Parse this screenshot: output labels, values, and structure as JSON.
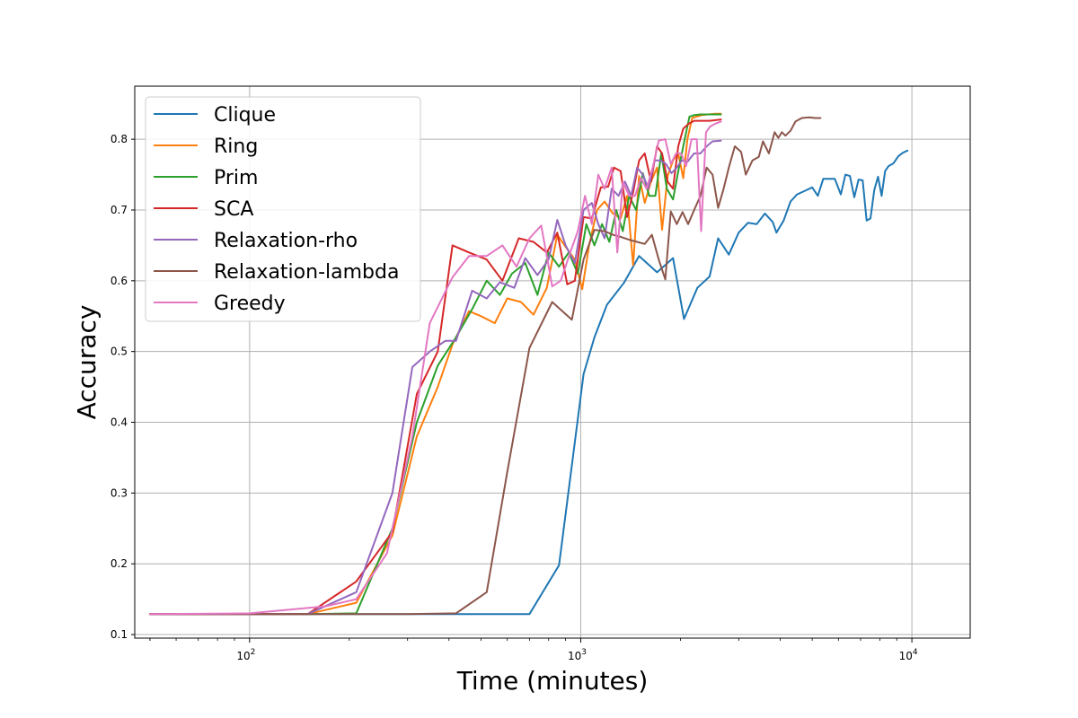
{
  "chart_data": {
    "type": "line",
    "xlabel": "Time (minutes)",
    "ylabel": "Accuracy",
    "xscale": "log",
    "xlim": [
      45,
      15000
    ],
    "ylim": [
      0.095,
      0.875
    ],
    "grid": true,
    "legend_position": "top-left",
    "x_ticks": [
      {
        "value": 100,
        "base": "10",
        "exp": "2"
      },
      {
        "value": 1000,
        "base": "10",
        "exp": "3"
      },
      {
        "value": 10000,
        "base": "10",
        "exp": "4"
      }
    ],
    "y_ticks": [
      {
        "value": 0.1,
        "label": "0.1"
      },
      {
        "value": 0.2,
        "label": "0.2"
      },
      {
        "value": 0.3,
        "label": "0.3"
      },
      {
        "value": 0.4,
        "label": "0.4"
      },
      {
        "value": 0.5,
        "label": "0.5"
      },
      {
        "value": 0.6,
        "label": "0.6"
      },
      {
        "value": 0.7,
        "label": "0.7"
      },
      {
        "value": 0.8,
        "label": "0.8"
      }
    ],
    "series": [
      {
        "name": "Clique",
        "color": "#1f77b4",
        "points": [
          [
            50,
            0.129
          ],
          [
            150,
            0.129
          ],
          [
            300,
            0.129
          ],
          [
            500,
            0.129
          ],
          [
            700,
            0.129
          ],
          [
            860,
            0.198
          ],
          [
            1020,
            0.468
          ],
          [
            1100,
            0.52
          ],
          [
            1200,
            0.566
          ],
          [
            1350,
            0.597
          ],
          [
            1500,
            0.635
          ],
          [
            1700,
            0.612
          ],
          [
            1900,
            0.632
          ],
          [
            2050,
            0.546
          ],
          [
            2250,
            0.59
          ],
          [
            2450,
            0.606
          ],
          [
            2600,
            0.66
          ],
          [
            2800,
            0.637
          ],
          [
            3000,
            0.668
          ],
          [
            3200,
            0.682
          ],
          [
            3400,
            0.68
          ],
          [
            3600,
            0.695
          ],
          [
            3800,
            0.683
          ],
          [
            3900,
            0.668
          ],
          [
            4100,
            0.685
          ],
          [
            4300,
            0.712
          ],
          [
            4500,
            0.722
          ],
          [
            4800,
            0.728
          ],
          [
            5000,
            0.732
          ],
          [
            5200,
            0.72
          ],
          [
            5400,
            0.744
          ],
          [
            5600,
            0.744
          ],
          [
            5850,
            0.744
          ],
          [
            6100,
            0.722
          ],
          [
            6300,
            0.75
          ],
          [
            6500,
            0.748
          ],
          [
            6700,
            0.718
          ],
          [
            6900,
            0.743
          ],
          [
            7100,
            0.742
          ],
          [
            7300,
            0.685
          ],
          [
            7500,
            0.688
          ],
          [
            7700,
            0.728
          ],
          [
            7900,
            0.747
          ],
          [
            8100,
            0.72
          ],
          [
            8300,
            0.755
          ],
          [
            8500,
            0.762
          ],
          [
            8800,
            0.766
          ],
          [
            9100,
            0.776
          ],
          [
            9400,
            0.781
          ],
          [
            9700,
            0.784
          ]
        ]
      },
      {
        "name": "Ring",
        "color": "#ff7f0e",
        "points": [
          [
            50,
            0.129
          ],
          [
            150,
            0.129
          ],
          [
            210,
            0.145
          ],
          [
            270,
            0.24
          ],
          [
            320,
            0.38
          ],
          [
            370,
            0.45
          ],
          [
            410,
            0.51
          ],
          [
            460,
            0.557
          ],
          [
            500,
            0.55
          ],
          [
            550,
            0.54
          ],
          [
            600,
            0.575
          ],
          [
            660,
            0.57
          ],
          [
            720,
            0.552
          ],
          [
            790,
            0.59
          ],
          [
            850,
            0.665
          ],
          [
            900,
            0.648
          ],
          [
            960,
            0.63
          ],
          [
            1010,
            0.588
          ],
          [
            1060,
            0.65
          ],
          [
            1120,
            0.7
          ],
          [
            1180,
            0.712
          ],
          [
            1250,
            0.695
          ],
          [
            1320,
            0.688
          ],
          [
            1380,
            0.72
          ],
          [
            1440,
            0.622
          ],
          [
            1500,
            0.748
          ],
          [
            1560,
            0.71
          ],
          [
            1630,
            0.74
          ],
          [
            1700,
            0.76
          ],
          [
            1760,
            0.672
          ],
          [
            1830,
            0.748
          ],
          [
            1900,
            0.77
          ],
          [
            1970,
            0.78
          ],
          [
            2040,
            0.745
          ],
          [
            2100,
            0.8
          ],
          [
            2170,
            0.83
          ],
          [
            2240,
            0.832
          ],
          [
            2320,
            0.834
          ],
          [
            2420,
            0.835
          ],
          [
            2550,
            0.836
          ],
          [
            2650,
            0.836
          ]
        ]
      },
      {
        "name": "Prim",
        "color": "#2ca02c",
        "points": [
          [
            50,
            0.129
          ],
          [
            150,
            0.129
          ],
          [
            210,
            0.13
          ],
          [
            270,
            0.25
          ],
          [
            320,
            0.4
          ],
          [
            370,
            0.48
          ],
          [
            420,
            0.52
          ],
          [
            470,
            0.56
          ],
          [
            520,
            0.6
          ],
          [
            570,
            0.58
          ],
          [
            620,
            0.61
          ],
          [
            680,
            0.625
          ],
          [
            740,
            0.58
          ],
          [
            800,
            0.64
          ],
          [
            860,
            0.62
          ],
          [
            920,
            0.64
          ],
          [
            980,
            0.61
          ],
          [
            1040,
            0.68
          ],
          [
            1100,
            0.65
          ],
          [
            1160,
            0.68
          ],
          [
            1220,
            0.655
          ],
          [
            1280,
            0.7
          ],
          [
            1340,
            0.67
          ],
          [
            1400,
            0.72
          ],
          [
            1470,
            0.7
          ],
          [
            1540,
            0.752
          ],
          [
            1610,
            0.72
          ],
          [
            1680,
            0.72
          ],
          [
            1750,
            0.78
          ],
          [
            1820,
            0.73
          ],
          [
            1900,
            0.715
          ],
          [
            1980,
            0.76
          ],
          [
            2060,
            0.8
          ],
          [
            2130,
            0.832
          ],
          [
            2200,
            0.834
          ],
          [
            2300,
            0.835
          ],
          [
            2450,
            0.835
          ],
          [
            2650,
            0.835
          ]
        ]
      },
      {
        "name": "SCA",
        "color": "#d62728",
        "points": [
          [
            50,
            0.129
          ],
          [
            150,
            0.129
          ],
          [
            210,
            0.175
          ],
          [
            270,
            0.245
          ],
          [
            320,
            0.44
          ],
          [
            370,
            0.5
          ],
          [
            410,
            0.65
          ],
          [
            460,
            0.64
          ],
          [
            520,
            0.63
          ],
          [
            580,
            0.6
          ],
          [
            650,
            0.66
          ],
          [
            720,
            0.655
          ],
          [
            790,
            0.64
          ],
          [
            850,
            0.668
          ],
          [
            910,
            0.595
          ],
          [
            960,
            0.6
          ],
          [
            1020,
            0.69
          ],
          [
            1080,
            0.688
          ],
          [
            1150,
            0.732
          ],
          [
            1210,
            0.733
          ],
          [
            1260,
            0.76
          ],
          [
            1320,
            0.755
          ],
          [
            1380,
            0.69
          ],
          [
            1440,
            0.725
          ],
          [
            1500,
            0.77
          ],
          [
            1560,
            0.78
          ],
          [
            1630,
            0.74
          ],
          [
            1700,
            0.79
          ],
          [
            1760,
            0.78
          ],
          [
            1830,
            0.74
          ],
          [
            1900,
            0.73
          ],
          [
            1970,
            0.79
          ],
          [
            2040,
            0.815
          ],
          [
            2120,
            0.822
          ],
          [
            2200,
            0.826
          ],
          [
            2300,
            0.826
          ],
          [
            2450,
            0.826
          ],
          [
            2650,
            0.828
          ]
        ]
      },
      {
        "name": "Relaxation-rho",
        "color": "#9467bd",
        "points": [
          [
            50,
            0.129
          ],
          [
            150,
            0.129
          ],
          [
            210,
            0.16
          ],
          [
            270,
            0.3
          ],
          [
            310,
            0.478
          ],
          [
            350,
            0.5
          ],
          [
            390,
            0.515
          ],
          [
            420,
            0.515
          ],
          [
            470,
            0.586
          ],
          [
            520,
            0.575
          ],
          [
            570,
            0.598
          ],
          [
            630,
            0.59
          ],
          [
            680,
            0.632
          ],
          [
            740,
            0.608
          ],
          [
            800,
            0.63
          ],
          [
            850,
            0.686
          ],
          [
            900,
            0.65
          ],
          [
            960,
            0.625
          ],
          [
            1020,
            0.7
          ],
          [
            1080,
            0.71
          ],
          [
            1130,
            0.68
          ],
          [
            1180,
            0.66
          ],
          [
            1240,
            0.73
          ],
          [
            1300,
            0.72
          ],
          [
            1360,
            0.74
          ],
          [
            1420,
            0.72
          ],
          [
            1480,
            0.76
          ],
          [
            1540,
            0.75
          ],
          [
            1600,
            0.73
          ],
          [
            1670,
            0.77
          ],
          [
            1740,
            0.77
          ],
          [
            1810,
            0.765
          ],
          [
            1880,
            0.752
          ],
          [
            1950,
            0.76
          ],
          [
            2020,
            0.77
          ],
          [
            2100,
            0.768
          ],
          [
            2200,
            0.78
          ],
          [
            2300,
            0.78
          ],
          [
            2400,
            0.79
          ],
          [
            2500,
            0.797
          ],
          [
            2650,
            0.798
          ]
        ]
      },
      {
        "name": "Relaxation-lambda",
        "color": "#8c564b",
        "points": [
          [
            50,
            0.129
          ],
          [
            300,
            0.129
          ],
          [
            420,
            0.13
          ],
          [
            520,
            0.16
          ],
          [
            600,
            0.33
          ],
          [
            700,
            0.505
          ],
          [
            820,
            0.57
          ],
          [
            940,
            0.545
          ],
          [
            1020,
            0.63
          ],
          [
            1100,
            0.672
          ],
          [
            1180,
            0.67
          ],
          [
            1250,
            0.665
          ],
          [
            1320,
            0.662
          ],
          [
            1400,
            0.658
          ],
          [
            1480,
            0.655
          ],
          [
            1560,
            0.652
          ],
          [
            1640,
            0.665
          ],
          [
            1720,
            0.63
          ],
          [
            1800,
            0.602
          ],
          [
            1870,
            0.698
          ],
          [
            1950,
            0.68
          ],
          [
            2030,
            0.697
          ],
          [
            2110,
            0.68
          ],
          [
            2200,
            0.7
          ],
          [
            2300,
            0.72
          ],
          [
            2400,
            0.76
          ],
          [
            2500,
            0.75
          ],
          [
            2600,
            0.703
          ],
          [
            2700,
            0.73
          ],
          [
            2800,
            0.76
          ],
          [
            2920,
            0.79
          ],
          [
            3050,
            0.782
          ],
          [
            3150,
            0.75
          ],
          [
            3300,
            0.77
          ],
          [
            3450,
            0.775
          ],
          [
            3550,
            0.797
          ],
          [
            3700,
            0.78
          ],
          [
            3850,
            0.81
          ],
          [
            3950,
            0.802
          ],
          [
            4050,
            0.81
          ],
          [
            4150,
            0.805
          ],
          [
            4300,
            0.812
          ],
          [
            4450,
            0.825
          ],
          [
            4650,
            0.83
          ],
          [
            4900,
            0.831
          ],
          [
            5100,
            0.83
          ],
          [
            5300,
            0.83
          ]
        ]
      },
      {
        "name": "Greedy",
        "color": "#e377c2",
        "points": [
          [
            50,
            0.129
          ],
          [
            100,
            0.13
          ],
          [
            170,
            0.14
          ],
          [
            210,
            0.15
          ],
          [
            260,
            0.215
          ],
          [
            310,
            0.38
          ],
          [
            350,
            0.54
          ],
          [
            410,
            0.605
          ],
          [
            460,
            0.635
          ],
          [
            520,
            0.635
          ],
          [
            580,
            0.65
          ],
          [
            640,
            0.62
          ],
          [
            700,
            0.66
          ],
          [
            760,
            0.678
          ],
          [
            820,
            0.592
          ],
          [
            870,
            0.6
          ],
          [
            930,
            0.64
          ],
          [
            980,
            0.67
          ],
          [
            1030,
            0.72
          ],
          [
            1080,
            0.68
          ],
          [
            1130,
            0.75
          ],
          [
            1180,
            0.73
          ],
          [
            1240,
            0.76
          ],
          [
            1290,
            0.64
          ],
          [
            1340,
            0.74
          ],
          [
            1400,
            0.72
          ],
          [
            1460,
            0.72
          ],
          [
            1520,
            0.745
          ],
          [
            1580,
            0.73
          ],
          [
            1650,
            0.76
          ],
          [
            1720,
            0.798
          ],
          [
            1800,
            0.8
          ],
          [
            1870,
            0.765
          ],
          [
            1940,
            0.78
          ],
          [
            2010,
            0.78
          ],
          [
            2080,
            0.762
          ],
          [
            2160,
            0.8
          ],
          [
            2240,
            0.8
          ],
          [
            2310,
            0.67
          ],
          [
            2390,
            0.81
          ],
          [
            2460,
            0.818
          ],
          [
            2550,
            0.822
          ],
          [
            2650,
            0.825
          ]
        ]
      }
    ]
  }
}
